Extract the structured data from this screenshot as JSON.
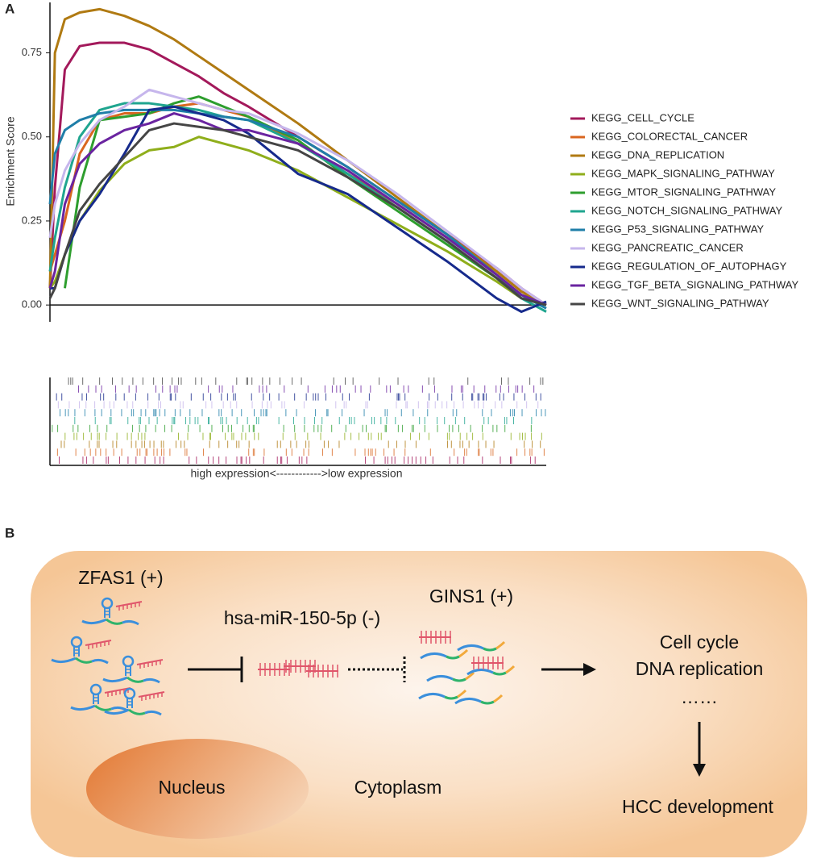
{
  "chart_data": {
    "type": "line",
    "panel_label": "A",
    "ylabel": "Enrichment Score",
    "xlabel": "high expression<------------>low expression",
    "x": [
      0,
      1,
      3,
      6,
      10,
      15,
      20,
      25,
      30,
      35,
      40,
      50,
      60,
      70,
      80,
      90,
      95,
      100
    ],
    "xlim": [
      0,
      100
    ],
    "ylim": [
      -0.05,
      0.9
    ],
    "yticks": [
      {
        "value": 0,
        "label": "0.00"
      },
      0.25,
      {
        "value": 0.5,
        "label": "0.50"
      },
      0.75
    ],
    "series": [
      {
        "name": "KEGG_CELL_CYCLE",
        "color": "#a3195b",
        "values": [
          0.05,
          0.35,
          0.7,
          0.77,
          0.78,
          0.78,
          0.76,
          0.72,
          0.68,
          0.63,
          0.59,
          0.5,
          0.41,
          0.31,
          0.21,
          0.11,
          0.05,
          0.0
        ]
      },
      {
        "name": "KEGG_COLORECTAL_CANCER",
        "color": "#d9661f",
        "values": [
          0.1,
          0.15,
          0.25,
          0.45,
          0.55,
          0.57,
          0.57,
          0.59,
          0.6,
          0.58,
          0.56,
          0.48,
          0.39,
          0.3,
          0.2,
          0.1,
          0.04,
          0.0
        ]
      },
      {
        "name": "KEGG_DNA_REPLICATION",
        "color": "#b07a12",
        "values": [
          0.05,
          0.75,
          0.85,
          0.87,
          0.88,
          0.86,
          0.83,
          0.79,
          0.74,
          0.69,
          0.64,
          0.54,
          0.43,
          0.32,
          0.21,
          0.1,
          0.04,
          0.0
        ]
      },
      {
        "name": "KEGG_MAPK_SIGNALING_PATHWAY",
        "color": "#8fae1b",
        "values": [
          0.05,
          0.07,
          0.15,
          0.25,
          0.34,
          0.42,
          0.46,
          0.47,
          0.5,
          0.48,
          0.46,
          0.4,
          0.32,
          0.24,
          0.16,
          0.07,
          0.02,
          0.0
        ]
      },
      {
        "name": "KEGG_MTOR_SIGNALING_PATHWAY",
        "color": "#2e9e2e",
        "values": [
          null,
          null,
          0.05,
          0.35,
          0.55,
          0.56,
          0.57,
          0.6,
          0.62,
          0.59,
          0.56,
          0.49,
          0.38,
          0.28,
          0.18,
          0.08,
          0.03,
          0.0
        ]
      },
      {
        "name": "KEGG_NOTCH_SIGNALING_PATHWAY",
        "color": "#1fa58f",
        "values": [
          0.1,
          0.2,
          0.35,
          0.5,
          0.58,
          0.6,
          0.6,
          0.59,
          0.58,
          0.56,
          0.55,
          0.48,
          0.39,
          0.29,
          0.19,
          0.08,
          0.02,
          -0.02
        ]
      },
      {
        "name": "KEGG_P53_SIGNALING_PATHWAY",
        "color": "#1f7ea8",
        "values": [
          0.3,
          0.45,
          0.52,
          0.55,
          0.57,
          0.58,
          0.58,
          0.58,
          0.57,
          0.56,
          0.55,
          0.5,
          0.41,
          0.31,
          0.21,
          0.09,
          0.03,
          -0.01
        ]
      },
      {
        "name": "KEGG_PANCREATIC_CANCER",
        "color": "#c6b6ec",
        "values": [
          0.2,
          0.3,
          0.4,
          0.48,
          0.55,
          0.59,
          0.64,
          0.62,
          0.6,
          0.58,
          0.57,
          0.51,
          0.43,
          0.33,
          0.22,
          0.11,
          0.05,
          0.0
        ]
      },
      {
        "name": "KEGG_REGULATION_OF_AUTOPHAGY",
        "color": "#162a8c",
        "values": [
          0.05,
          0.05,
          0.15,
          0.25,
          0.33,
          0.45,
          0.58,
          0.59,
          0.57,
          0.55,
          0.51,
          0.39,
          0.33,
          0.23,
          0.13,
          0.02,
          -0.02,
          0.01
        ]
      },
      {
        "name": "KEGG_TGF_BETA_SIGNALING_PATHWAY",
        "color": "#6a24a0",
        "values": [
          0.05,
          0.1,
          0.3,
          0.42,
          0.48,
          0.52,
          0.54,
          0.57,
          0.55,
          0.52,
          0.52,
          0.48,
          0.4,
          0.3,
          0.2,
          0.09,
          0.03,
          0.0
        ]
      },
      {
        "name": "KEGG_WNT_SIGNALING_PATHWAY",
        "color": "#454545",
        "values": [
          0.02,
          0.05,
          0.15,
          0.28,
          0.36,
          0.44,
          0.52,
          0.54,
          0.53,
          0.52,
          0.5,
          0.46,
          0.38,
          0.29,
          0.19,
          0.08,
          0.02,
          0.0
        ]
      }
    ]
  },
  "diagram": {
    "panel_label": "B",
    "zfas1": "ZFAS1 (+)",
    "mirna": "hsa-miR-150-5p (-)",
    "gins1": "GINS1 (+)",
    "outcome1": "Cell cycle",
    "outcome2": "DNA replication",
    "ellipsis": "……",
    "final": "HCC development",
    "nucleus": "Nucleus",
    "cytoplasm": "Cytoplasm"
  }
}
